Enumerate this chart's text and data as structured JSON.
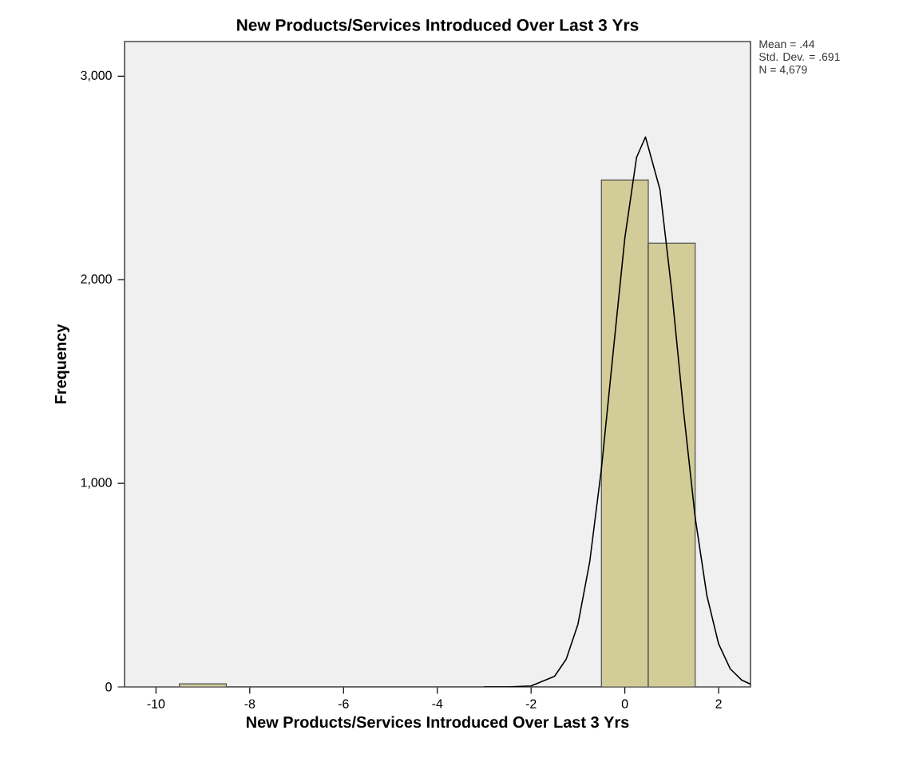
{
  "chart_data": {
    "type": "histogram",
    "title": "New Products/Services Introduced Over Last 3 Yrs",
    "xlabel": "New Products/Services Introduced Over Last 3 Yrs",
    "ylabel": "Frequency",
    "annotations": [
      "Mean = .44",
      "Std. Dev. = .691",
      "N = 4,679"
    ],
    "bins": [
      -9.5,
      -8.5,
      -7.5,
      -6.5,
      -5.5,
      -4.5,
      -3.5,
      -2.5,
      -1.5,
      -0.5,
      0.5,
      1.5
    ],
    "series": [
      {
        "type": "histogram",
        "color": "#d2cd98",
        "values": [
          15,
          0,
          0,
          0,
          0,
          0,
          0,
          0,
          0,
          2490,
          2180
        ]
      },
      {
        "type": "line",
        "color": "#000000",
        "x": [
          -3,
          -2.5,
          -2,
          -1.5,
          -1.25,
          -1,
          -0.75,
          -0.5,
          -0.25,
          0,
          0.25,
          0.44,
          0.75,
          1,
          1.25,
          1.5,
          1.75,
          2,
          2.25,
          2.5,
          2.68
        ],
        "values": [
          0,
          0,
          5,
          52,
          136,
          308,
          613,
          1071,
          1641,
          2205,
          2601,
          2701,
          2442,
          1945,
          1359,
          832,
          448,
          211,
          88,
          32,
          14
        ]
      }
    ],
    "xlim": [
      -10.67,
      2.68
    ],
    "ylim": [
      0,
      3170
    ],
    "xticks": [
      -10,
      -8,
      -6,
      -4,
      -2,
      0,
      2
    ],
    "yticks": [
      0,
      {
        "value": 1000,
        "label": "1,000"
      },
      {
        "value": 2000,
        "label": "2,000"
      },
      {
        "value": 3000,
        "label": "3,000"
      }
    ],
    "grid": false
  }
}
